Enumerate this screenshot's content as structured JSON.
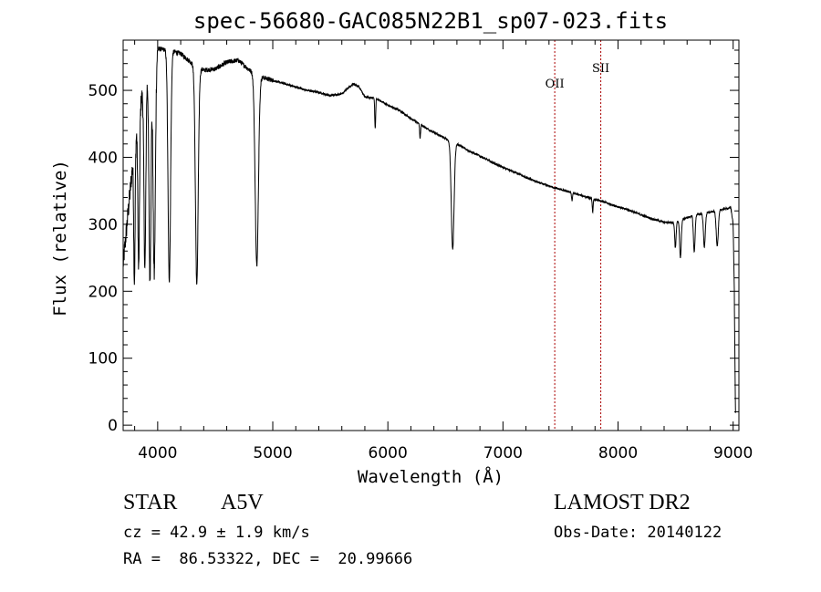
{
  "chart_data": {
    "type": "line",
    "title": "spec-56680-GAC085N22B1_sp07-023.fits",
    "xlabel": "Wavelength (Å)",
    "ylabel": "Flux (relative)",
    "xlim": [
      3700,
      9050
    ],
    "ylim": [
      -8,
      575
    ],
    "xticks": [
      4000,
      5000,
      6000,
      7000,
      8000,
      9000
    ],
    "xtick_labels": [
      "4000",
      "5000",
      "6000",
      "7000",
      "8000",
      "9000"
    ],
    "yticks": [
      0,
      100,
      200,
      300,
      400,
      500
    ],
    "ytick_labels": [
      "0",
      "100",
      "200",
      "300",
      "400",
      "500"
    ],
    "line_color": "#000000",
    "marker_color": "#aa0000",
    "lines": [
      {
        "label": "OII",
        "x": 7450
      },
      {
        "label": "SII",
        "x": 7850
      }
    ],
    "continuum": [
      [
        3700,
        240
      ],
      [
        3750,
        330
      ],
      [
        3800,
        420
      ],
      [
        3850,
        480
      ],
      [
        3900,
        520
      ],
      [
        3950,
        550
      ],
      [
        4000,
        562
      ],
      [
        4100,
        560
      ],
      [
        4200,
        555
      ],
      [
        4300,
        540
      ],
      [
        4400,
        530
      ],
      [
        4500,
        532
      ],
      [
        4600,
        542
      ],
      [
        4700,
        545
      ],
      [
        4800,
        530
      ],
      [
        4900,
        520
      ],
      [
        5000,
        515
      ],
      [
        5100,
        510
      ],
      [
        5200,
        505
      ],
      [
        5300,
        500
      ],
      [
        5400,
        497
      ],
      [
        5500,
        492
      ],
      [
        5600,
        495
      ],
      [
        5700,
        510
      ],
      [
        5750,
        505
      ],
      [
        5800,
        490
      ],
      [
        5900,
        488
      ],
      [
        6000,
        478
      ],
      [
        6100,
        470
      ],
      [
        6200,
        458
      ],
      [
        6300,
        447
      ],
      [
        6400,
        437
      ],
      [
        6500,
        428
      ],
      [
        6600,
        420
      ],
      [
        6700,
        410
      ],
      [
        6800,
        402
      ],
      [
        6900,
        393
      ],
      [
        7000,
        385
      ],
      [
        7100,
        378
      ],
      [
        7200,
        370
      ],
      [
        7300,
        363
      ],
      [
        7400,
        357
      ],
      [
        7500,
        352
      ],
      [
        7600,
        347
      ],
      [
        7700,
        342
      ],
      [
        7800,
        337
      ],
      [
        7900,
        332
      ],
      [
        8000,
        326
      ],
      [
        8100,
        321
      ],
      [
        8200,
        314
      ],
      [
        8300,
        308
      ],
      [
        8400,
        303
      ],
      [
        8500,
        303
      ],
      [
        8600,
        310
      ],
      [
        8700,
        315
      ],
      [
        8800,
        318
      ],
      [
        8900,
        322
      ],
      [
        8980,
        325
      ],
      [
        9000,
        300
      ],
      [
        9010,
        200
      ],
      [
        9020,
        20
      ]
    ],
    "absorption_lines": [
      {
        "wl": 3798,
        "depth": 200,
        "width": 6
      },
      {
        "wl": 3835,
        "depth": 230,
        "width": 7
      },
      {
        "wl": 3889,
        "depth": 280,
        "width": 8
      },
      {
        "wl": 3933,
        "depth": 320,
        "width": 9
      },
      {
        "wl": 3970,
        "depth": 330,
        "width": 10
      },
      {
        "wl": 4101,
        "depth": 345,
        "width": 11
      },
      {
        "wl": 4340,
        "depth": 325,
        "width": 12
      },
      {
        "wl": 4861,
        "depth": 285,
        "width": 14
      },
      {
        "wl": 5890,
        "depth": 45,
        "width": 4
      },
      {
        "wl": 6280,
        "depth": 20,
        "width": 4
      },
      {
        "wl": 6563,
        "depth": 160,
        "width": 12
      },
      {
        "wl": 7600,
        "depth": 12,
        "width": 4
      },
      {
        "wl": 7780,
        "depth": 20,
        "width": 4
      },
      {
        "wl": 8498,
        "depth": 38,
        "width": 6
      },
      {
        "wl": 8542,
        "depth": 55,
        "width": 7
      },
      {
        "wl": 8662,
        "depth": 55,
        "width": 7
      },
      {
        "wl": 8750,
        "depth": 50,
        "width": 8
      },
      {
        "wl": 8862,
        "depth": 52,
        "width": 9
      }
    ]
  },
  "info": {
    "object_class": "STAR",
    "subclass": "A5V",
    "survey": "LAMOST DR2",
    "redshift": "cz = 42.9 ± 1.9 km/s",
    "obs_date": "Obs-Date: 20140122",
    "coords": "RA =  86.53322, DEC =  20.99666"
  }
}
